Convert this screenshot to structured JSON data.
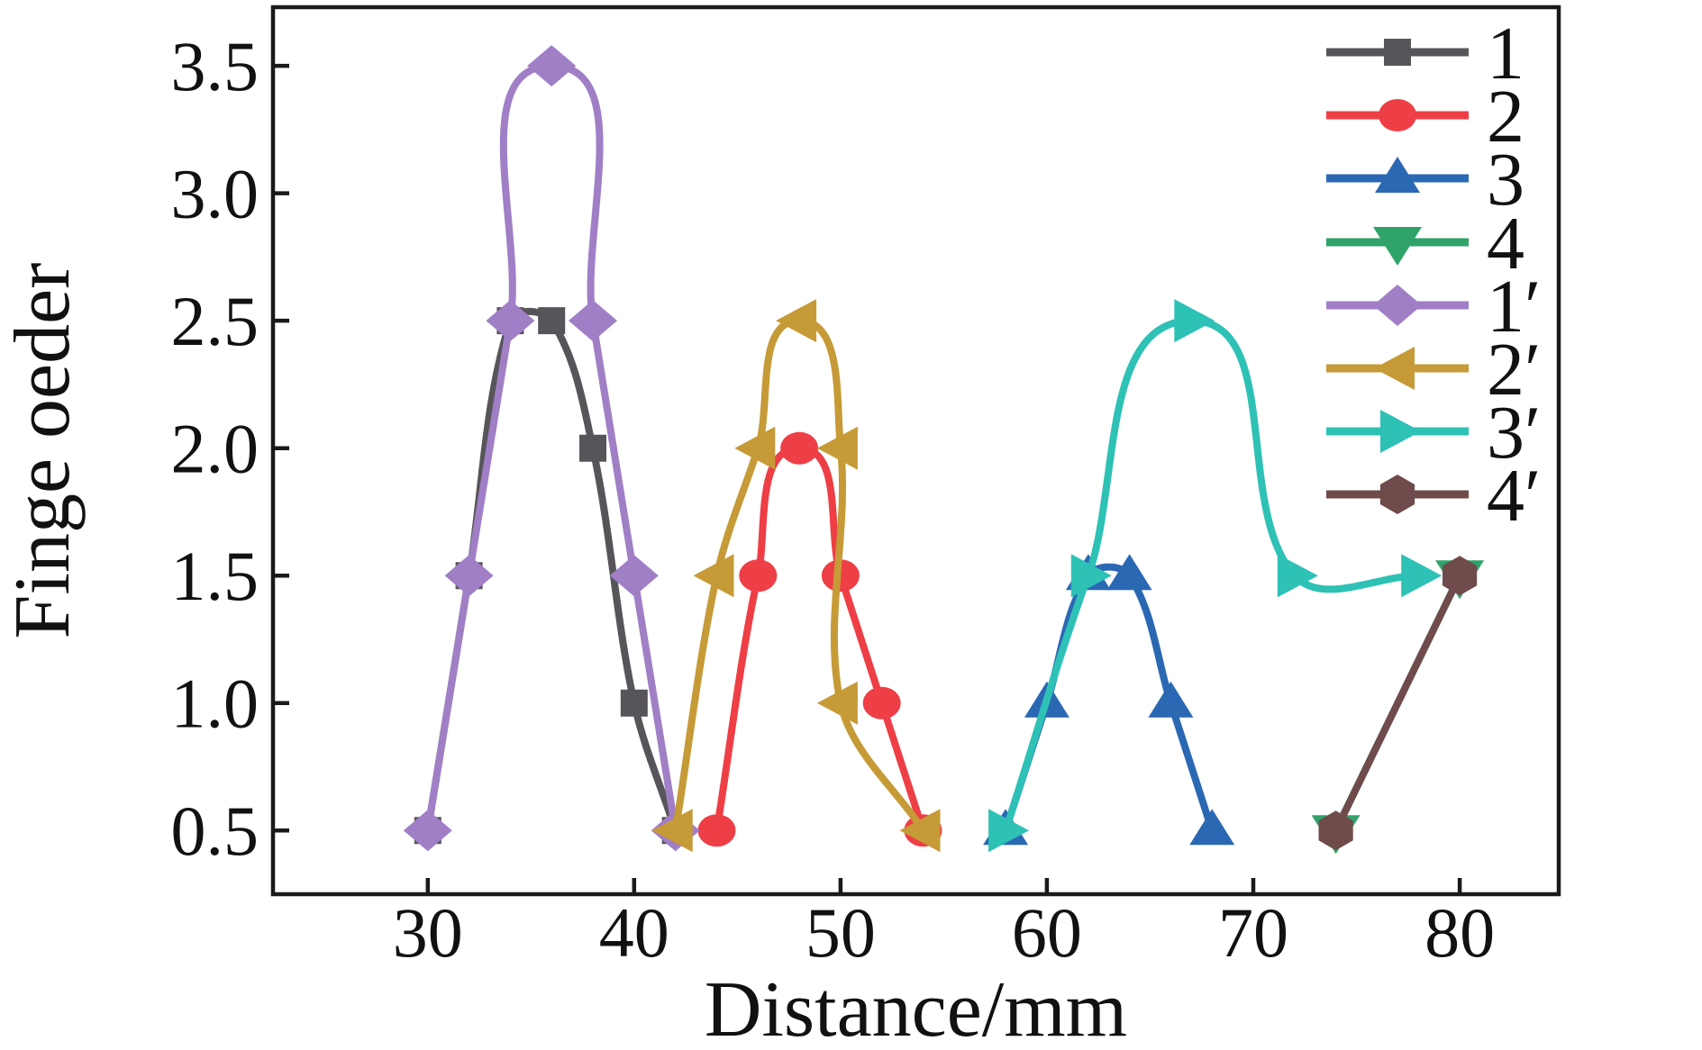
{
  "chart_data": {
    "type": "line",
    "title": "",
    "xlabel": "Distance/mm",
    "ylabel": "Finge oeder",
    "xlim": [
      22.5,
      84.8
    ],
    "ylim": [
      0.25,
      3.73
    ],
    "xticks": [
      "30",
      "40",
      "50",
      "60",
      "70",
      "80"
    ],
    "xtick_values": [
      30,
      40,
      50,
      60,
      70,
      80
    ],
    "yticks": [
      "0.5",
      "1.0",
      "1.5",
      "2.0",
      "2.5",
      "3.0",
      "3.5"
    ],
    "ytick_values": [
      0.5,
      1.0,
      1.5,
      2.0,
      2.5,
      3.0,
      3.5
    ],
    "grid": false,
    "legend_position": "top-right",
    "frame_color": "#1a1a1a",
    "background_color": "#ffffff",
    "series": [
      {
        "label": "1",
        "color": "#57555a",
        "marker": "square",
        "x": [
          30,
          32,
          34,
          36,
          38,
          40,
          42
        ],
        "y": [
          0.5,
          1.5,
          2.5,
          2.5,
          2.0,
          1.0,
          0.5
        ]
      },
      {
        "label": "2",
        "color": "#ee3e46",
        "marker": "circle",
        "x": [
          44,
          46,
          48,
          50,
          52,
          54
        ],
        "y": [
          0.5,
          1.5,
          2.0,
          1.5,
          1.0,
          0.5
        ]
      },
      {
        "label": "3",
        "color": "#2b68b4",
        "marker": "triangle-up",
        "x": [
          58,
          60,
          62,
          64,
          66,
          68
        ],
        "y": [
          0.5,
          1.0,
          1.5,
          1.5,
          1.0,
          0.5
        ]
      },
      {
        "label": "4",
        "color": "#30a369",
        "marker": "triangle-down",
        "x": [
          74,
          80
        ],
        "y": [
          0.5,
          1.5
        ]
      },
      {
        "label": "1′",
        "color": "#a07fc6",
        "marker": "diamond",
        "x": [
          30,
          32,
          34,
          36,
          38,
          40,
          42
        ],
        "y": [
          0.5,
          1.5,
          2.5,
          3.5,
          2.5,
          1.5,
          0.5
        ]
      },
      {
        "label": "2′",
        "color": "#c69a36",
        "marker": "triangle-left",
        "x": [
          42,
          44,
          46,
          48,
          50,
          50,
          54
        ],
        "y": [
          0.5,
          1.5,
          2.0,
          2.5,
          2.0,
          1.0,
          0.5
        ]
      },
      {
        "label": "3′",
        "color": "#2ec1b6",
        "marker": "triangle-right",
        "x": [
          58,
          62,
          67,
          72,
          78
        ],
        "y": [
          0.5,
          1.5,
          2.5,
          1.5,
          1.5
        ]
      },
      {
        "label": "4′",
        "color": "#6f4b4b",
        "marker": "hexagon",
        "x": [
          74,
          80
        ],
        "y": [
          0.5,
          1.5
        ]
      }
    ]
  }
}
